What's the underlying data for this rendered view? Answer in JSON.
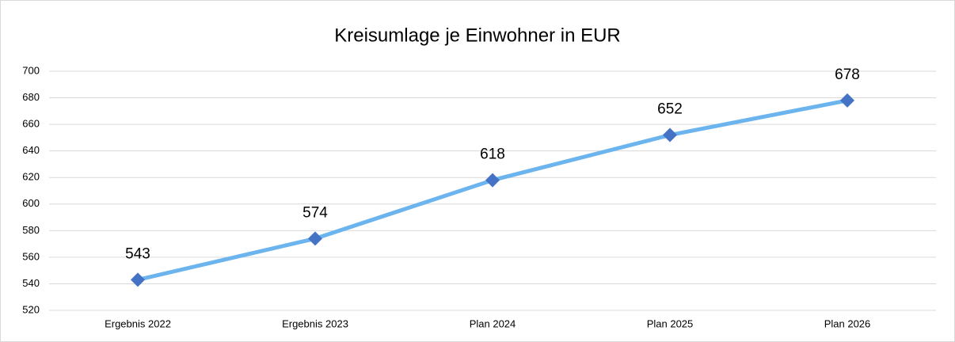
{
  "chart_data": {
    "type": "line",
    "title": "Kreisumlage je Einwohner in EUR",
    "categories": [
      "Ergebnis 2022",
      "Ergebnis 2023",
      "Plan 2024",
      "Plan 2025",
      "Plan 2026"
    ],
    "series": [
      {
        "name": "Kreisumlage je Einwohner",
        "color": "#6cb4ee",
        "marker_color": "#4472c4",
        "values": [
          543,
          574,
          618,
          652,
          678
        ]
      }
    ],
    "ylim": [
      520,
      700
    ],
    "yticks": [
      520,
      540,
      560,
      580,
      600,
      620,
      640,
      660,
      680,
      700
    ],
    "grid": true,
    "legend": false
  }
}
